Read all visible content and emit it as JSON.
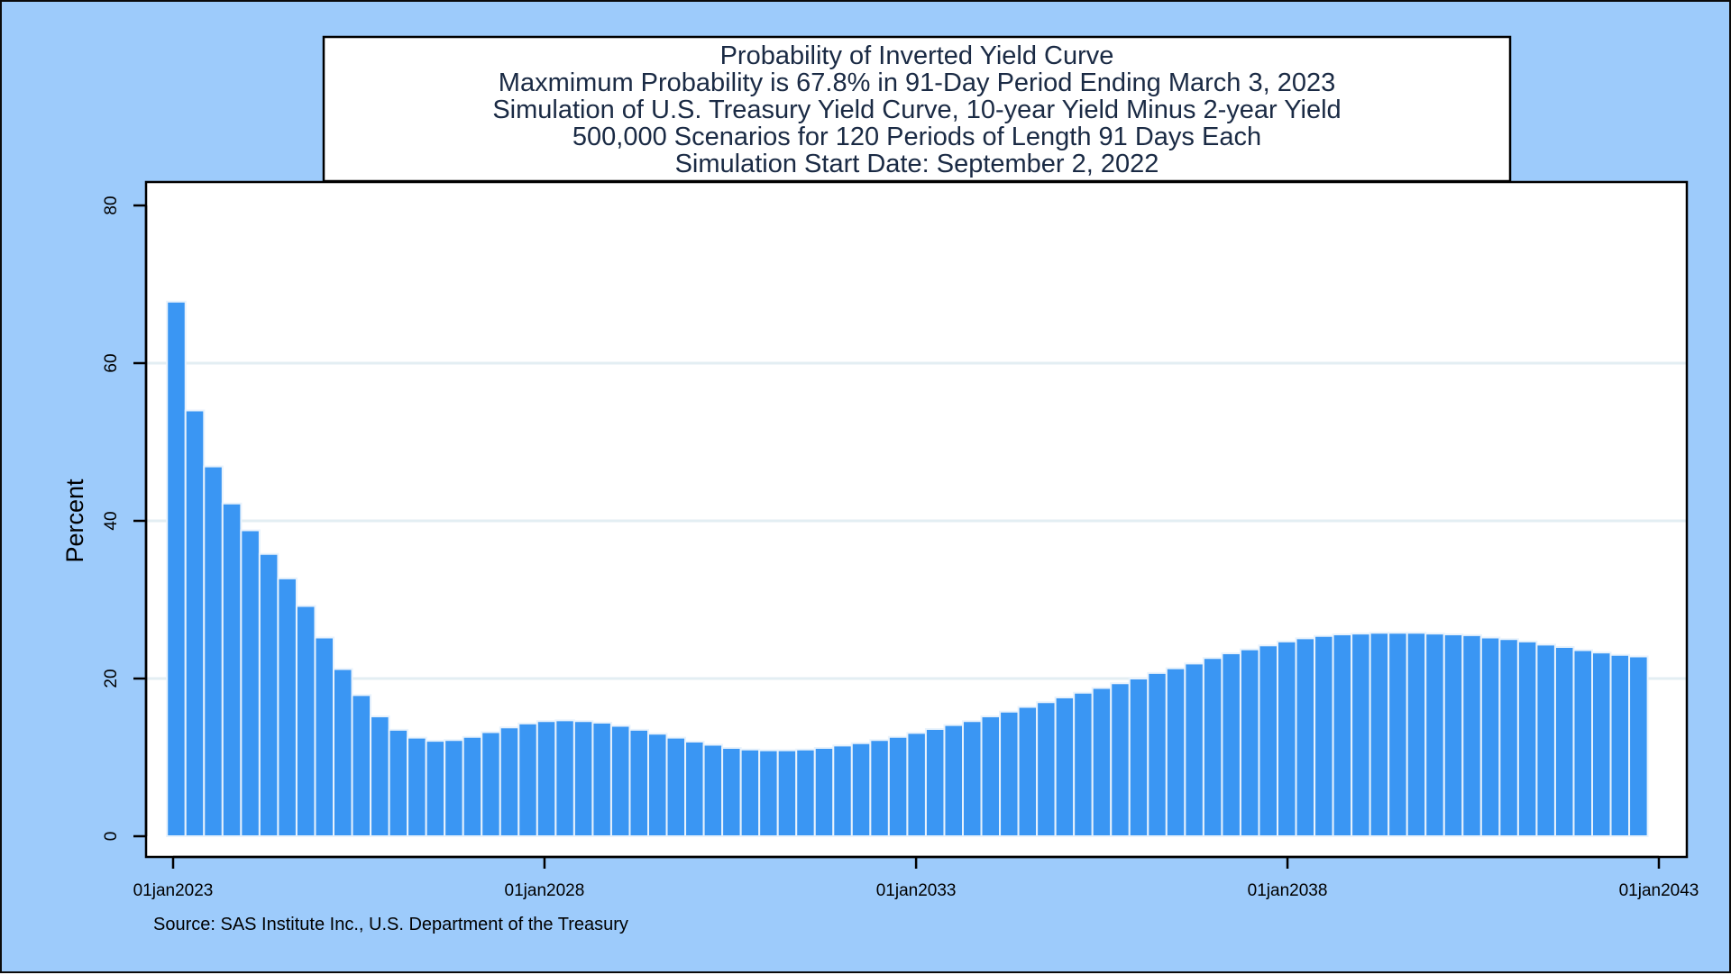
{
  "title_lines": [
    "Probability of Inverted Yield Curve",
    "Maxmimum Probability is 67.8% in 91-Day Period Ending March 3, 2023",
    "Simulation of U.S. Treasury Yield Curve, 10-year Yield Minus 2-year Yield",
    "500,000 Scenarios for 120 Periods of Length 91 Days Each",
    "Simulation Start Date: September 2, 2022"
  ],
  "note": "Source: SAS Institute Inc., U.S. Department of the Treasury",
  "colors": {
    "background": "#9dcbfb",
    "plot": "#ffffff",
    "bar_fill": "#3a96f3",
    "bar_outline": "#e8f2fc",
    "gridline": "#e3eef3",
    "title_text": "#1a2a44"
  },
  "chart_data": {
    "type": "bar",
    "title": "Probability of Inverted Yield Curve",
    "xlabel": "",
    "ylabel": "Percent",
    "ylim": [
      0,
      80
    ],
    "yticks": [
      0,
      20,
      40,
      60,
      80
    ],
    "xlim": [
      "2022-09-02",
      "2043-01-01"
    ],
    "xticks": [
      {
        "date": "2023-01-01",
        "label": "01jan2023"
      },
      {
        "date": "2028-01-01",
        "label": "01jan2028"
      },
      {
        "date": "2033-01-01",
        "label": "01jan2033"
      },
      {
        "date": "2038-01-01",
        "label": "01jan2038"
      },
      {
        "date": "2043-01-01",
        "label": "01jan2043"
      }
    ],
    "grid": true,
    "legend": "none",
    "series": [
      {
        "x": [
          "2023-03-03",
          "2023-06-02",
          "2023-09-01",
          "2023-12-01",
          "2024-03-01",
          "2024-05-31",
          "2024-08-30",
          "2024-11-29",
          "2025-02-28",
          "2025-05-30",
          "2025-08-29",
          "2025-11-28",
          "2026-02-27",
          "2026-05-29",
          "2026-08-28",
          "2026-11-27",
          "2027-02-26",
          "2027-05-28",
          "2027-08-27",
          "2027-11-26",
          "2028-02-25",
          "2028-05-26",
          "2028-08-25",
          "2028-11-24",
          "2029-02-23",
          "2029-05-25",
          "2029-08-24",
          "2029-11-23",
          "2030-02-22",
          "2030-05-24",
          "2030-08-23",
          "2030-11-22",
          "2031-02-21",
          "2031-05-23",
          "2031-08-22",
          "2031-11-21",
          "2032-02-20",
          "2032-05-21",
          "2032-08-20",
          "2032-11-19",
          "2033-02-18",
          "2033-05-20",
          "2033-08-19",
          "2033-11-18",
          "2034-02-17",
          "2034-05-19",
          "2034-08-18",
          "2034-11-17",
          "2035-02-16",
          "2035-05-18",
          "2035-08-17",
          "2035-11-16",
          "2036-02-15",
          "2036-05-16",
          "2036-08-15",
          "2036-11-14",
          "2037-02-13",
          "2037-05-15",
          "2037-08-14",
          "2037-11-13",
          "2038-02-12",
          "2038-05-14",
          "2038-08-13",
          "2038-11-12",
          "2039-02-11",
          "2039-05-13",
          "2039-08-12",
          "2039-11-11",
          "2040-02-10",
          "2040-05-11",
          "2040-08-10",
          "2040-11-09",
          "2041-02-08",
          "2041-05-10",
          "2041-08-09",
          "2041-11-08",
          "2042-02-07",
          "2042-05-09",
          "2042-08-08",
          "2042-11-07"
        ],
        "values": [
          67.8,
          54.0,
          46.9,
          42.2,
          38.8,
          35.8,
          32.7,
          29.2,
          25.2,
          21.2,
          17.9,
          15.2,
          13.5,
          12.5,
          12.1,
          12.2,
          12.6,
          13.2,
          13.8,
          14.3,
          14.6,
          14.7,
          14.6,
          14.4,
          14.0,
          13.5,
          13.0,
          12.5,
          12.0,
          11.6,
          11.2,
          11.0,
          10.9,
          10.9,
          11.0,
          11.2,
          11.5,
          11.8,
          12.2,
          12.6,
          13.1,
          13.6,
          14.1,
          14.6,
          15.2,
          15.8,
          16.4,
          17.0,
          17.6,
          18.2,
          18.8,
          19.4,
          20.0,
          20.7,
          21.3,
          21.9,
          22.6,
          23.2,
          23.7,
          24.2,
          24.7,
          25.1,
          25.4,
          25.6,
          25.7,
          25.8,
          25.8,
          25.8,
          25.7,
          25.6,
          25.5,
          25.2,
          25.0,
          24.7,
          24.3,
          24.0,
          23.6,
          23.3,
          23.0,
          22.8
        ]
      }
    ]
  }
}
